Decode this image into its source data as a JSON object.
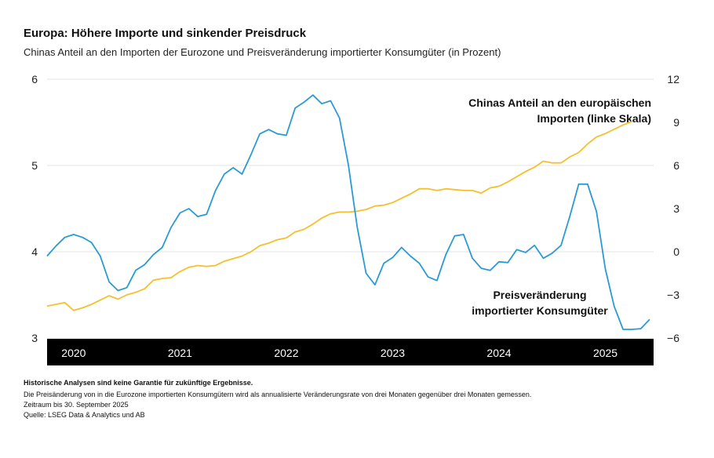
{
  "chart_data": {
    "type": "line",
    "title": "Europa: Höhere Importe und sinkender Preisdruck",
    "subtitle": "Chinas Anteil an den Importen der Eurozone und Preisveränderung importierter Konsumgüter (in Prozent)",
    "categories": [
      null,
      null,
      null,
      "2020",
      null,
      null,
      null,
      null,
      null,
      null,
      null,
      null,
      null,
      null,
      null,
      "2021",
      null,
      null,
      null,
      null,
      null,
      null,
      null,
      null,
      null,
      null,
      null,
      "2022",
      null,
      null,
      null,
      null,
      null,
      null,
      null,
      null,
      null,
      null,
      null,
      "2023",
      null,
      null,
      null,
      null,
      null,
      null,
      null,
      null,
      null,
      null,
      null,
      "2024",
      null,
      null,
      null,
      null,
      null,
      null,
      null,
      null,
      null,
      null,
      null,
      "2025",
      null,
      null,
      null,
      null,
      null
    ],
    "series": [
      {
        "name": "Chinas Anteil an den europäischen Importen (linke Skala)",
        "color": "#f5c02e",
        "values": [
          3.37,
          3.39,
          3.41,
          3.32,
          3.35,
          3.39,
          3.44,
          3.49,
          3.45,
          3.5,
          3.53,
          3.57,
          3.67,
          3.69,
          3.7,
          3.77,
          3.82,
          3.84,
          3.83,
          3.84,
          3.89,
          3.92,
          3.95,
          4.0,
          4.07,
          4.1,
          4.14,
          4.16,
          4.23,
          4.26,
          4.32,
          4.39,
          4.44,
          4.46,
          4.46,
          4.47,
          4.49,
          4.53,
          4.54,
          4.57,
          4.62,
          4.67,
          4.73,
          4.73,
          4.71,
          4.73,
          4.72,
          4.71,
          4.71,
          4.68,
          4.74,
          4.76,
          4.81,
          4.87,
          4.93,
          4.98,
          5.05,
          5.03,
          5.03,
          5.1,
          5.15,
          5.25,
          5.33,
          5.37,
          5.42,
          5.47,
          5.51,
          null,
          null
        ]
      },
      {
        "name": "Preisveränderung importierter Konsumgüter",
        "color": "#2b9ad4",
        "axis": "y2",
        "values": [
          -0.3,
          0.4,
          1.0,
          1.2,
          1.0,
          0.65,
          -0.3,
          -2.1,
          -2.7,
          -2.5,
          -1.3,
          -0.9,
          -0.2,
          0.3,
          1.7,
          2.7,
          3.0,
          2.45,
          2.6,
          4.25,
          5.4,
          5.85,
          5.4,
          6.75,
          8.2,
          8.5,
          8.2,
          8.1,
          10.0,
          10.4,
          10.9,
          10.3,
          10.5,
          9.3,
          6.05,
          1.7,
          -1.5,
          -2.3,
          -0.8,
          -0.4,
          0.3,
          -0.3,
          -0.8,
          -1.75,
          -2.0,
          -0.2,
          1.1,
          1.2,
          -0.45,
          -1.15,
          -1.3,
          -0.7,
          -0.75,
          0.15,
          -0.05,
          0.45,
          -0.45,
          -0.1,
          0.45,
          2.5,
          4.7,
          4.7,
          2.8,
          -1.2,
          -3.8,
          -5.4,
          -5.4,
          -5.35,
          -4.7
        ]
      }
    ],
    "ylim": [
      3,
      6
    ],
    "yticks": [
      3,
      4,
      5,
      6
    ],
    "y2lim": [
      -6,
      12
    ],
    "y2ticks": [
      {
        "value": -6,
        "label": "−6"
      },
      {
        "value": -3,
        "label": "−3"
      },
      0,
      3,
      6,
      9,
      12
    ],
    "grid": true,
    "notes": [
      "Historische Analysen sind keine Garantie für zukünftige Ergebnisse.",
      "Die Preisänderung von in die Eurozone importierten Konsumgütern wird als annualisierte Veränderungsrate von drei Monaten gegenüber drei Monaten gemessen.",
      "Zeitraum bis 30. September 2025",
      "Quelle: LSEG Data & Analytics und AB"
    ]
  }
}
